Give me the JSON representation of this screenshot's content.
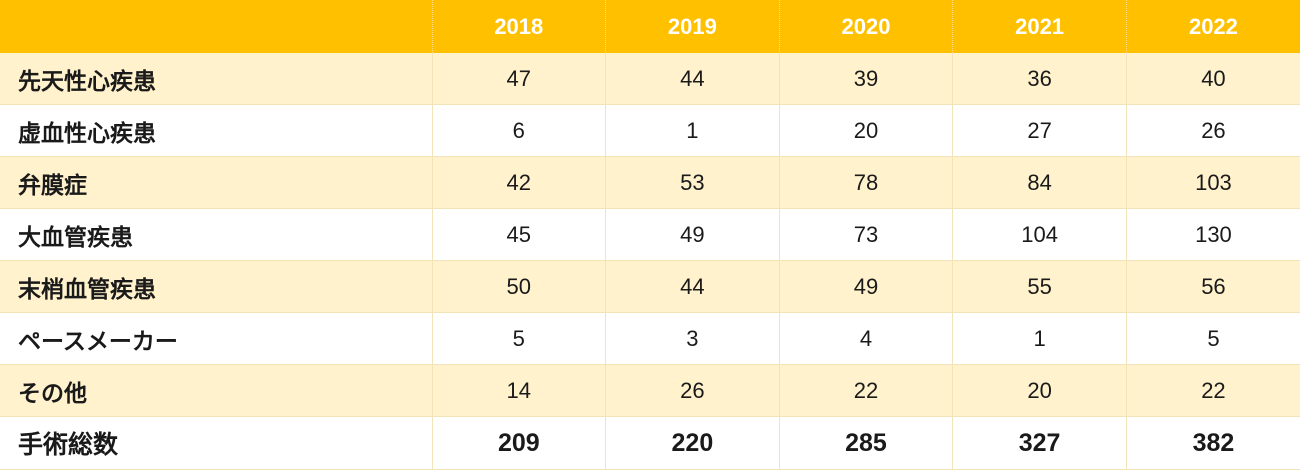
{
  "header": {
    "corner": "",
    "years": [
      "2018",
      "2019",
      "2020",
      "2021",
      "2022"
    ]
  },
  "rows": [
    {
      "label": "先天性心疾患",
      "values": [
        "47",
        "44",
        "39",
        "36",
        "40"
      ]
    },
    {
      "label": "虚血性心疾患",
      "values": [
        "6",
        "1",
        "20",
        "27",
        "26"
      ]
    },
    {
      "label": "弁膜症",
      "values": [
        "42",
        "53",
        "78",
        "84",
        "103"
      ]
    },
    {
      "label": "大血管疾患",
      "values": [
        "45",
        "49",
        "73",
        "104",
        "130"
      ]
    },
    {
      "label": "末梢血管疾患",
      "values": [
        "50",
        "44",
        "49",
        "55",
        "56"
      ]
    },
    {
      "label": "ペースメーカー",
      "values": [
        "5",
        "3",
        "4",
        "1",
        "5"
      ]
    },
    {
      "label": "その他",
      "values": [
        "14",
        "26",
        "22",
        "20",
        "22"
      ]
    }
  ],
  "total": {
    "label": "手術総数",
    "values": [
      "209",
      "220",
      "285",
      "327",
      "382"
    ]
  },
  "colors": {
    "header_bg": "#ffc000",
    "header_text": "#ffffff",
    "band_bg": "#fff2cc",
    "row_bg": "#ffffff",
    "grid_line": "#f2e3b8"
  }
}
